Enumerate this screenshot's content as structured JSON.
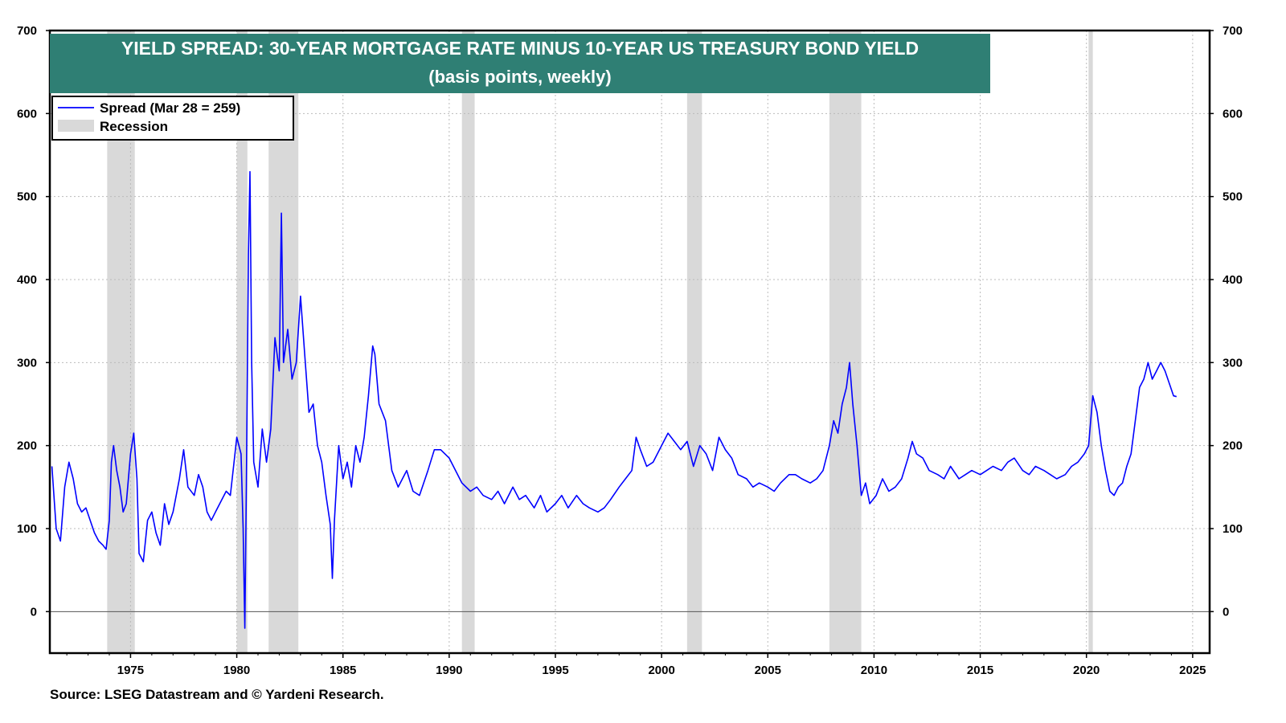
{
  "chart_data": {
    "type": "line",
    "title": "YIELD SPREAD: 30-YEAR MORTGAGE RATE MINUS 10-YEAR US TREASURY BOND YIELD",
    "subtitle": "(basis points, weekly)",
    "source": "Source: LSEG Datastream and © Yardeni Research.",
    "xlim": [
      1971.2,
      2025.8
    ],
    "ylim": [
      -50,
      700
    ],
    "x_ticks": [
      1975,
      1980,
      1985,
      1990,
      1995,
      2000,
      2005,
      2010,
      2015,
      2020,
      2025
    ],
    "y_ticks": [
      0,
      100,
      200,
      300,
      400,
      500,
      600,
      700
    ],
    "grid": true,
    "legend_position": "top-left",
    "recession_label": "Recession",
    "recessions": [
      [
        1973.9,
        1975.2
      ],
      [
        1980.0,
        1980.5
      ],
      [
        1981.5,
        1982.9
      ],
      [
        1990.6,
        1991.2
      ],
      [
        2001.2,
        2001.9
      ],
      [
        2007.9,
        2009.4
      ],
      [
        2020.1,
        2020.3
      ]
    ],
    "colors": {
      "line": "#0000ff",
      "recession": "#d9d9d9",
      "title_bg": "#2f7f74",
      "grid": "#bbbbbb"
    },
    "series": [
      {
        "name": "Spread (Mar 28 = 259)",
        "points": [
          [
            1971.3,
            175
          ],
          [
            1971.5,
            100
          ],
          [
            1971.7,
            85
          ],
          [
            1971.9,
            150
          ],
          [
            1972.1,
            180
          ],
          [
            1972.3,
            160
          ],
          [
            1972.5,
            130
          ],
          [
            1972.7,
            120
          ],
          [
            1972.9,
            125
          ],
          [
            1973.1,
            110
          ],
          [
            1973.3,
            95
          ],
          [
            1973.5,
            85
          ],
          [
            1973.7,
            80
          ],
          [
            1973.85,
            75
          ],
          [
            1974.0,
            110
          ],
          [
            1974.1,
            180
          ],
          [
            1974.2,
            200
          ],
          [
            1974.35,
            170
          ],
          [
            1974.5,
            150
          ],
          [
            1974.65,
            120
          ],
          [
            1974.8,
            130
          ],
          [
            1975.0,
            190
          ],
          [
            1975.15,
            215
          ],
          [
            1975.3,
            160
          ],
          [
            1975.4,
            70
          ],
          [
            1975.6,
            60
          ],
          [
            1975.8,
            110
          ],
          [
            1976.0,
            120
          ],
          [
            1976.2,
            95
          ],
          [
            1976.4,
            80
          ],
          [
            1976.6,
            130
          ],
          [
            1976.8,
            105
          ],
          [
            1977.0,
            120
          ],
          [
            1977.3,
            160
          ],
          [
            1977.5,
            195
          ],
          [
            1977.7,
            150
          ],
          [
            1978.0,
            140
          ],
          [
            1978.2,
            165
          ],
          [
            1978.4,
            150
          ],
          [
            1978.6,
            120
          ],
          [
            1978.8,
            110
          ],
          [
            1979.0,
            120
          ],
          [
            1979.3,
            135
          ],
          [
            1979.5,
            145
          ],
          [
            1979.7,
            140
          ],
          [
            1980.0,
            210
          ],
          [
            1980.2,
            190
          ],
          [
            1980.3,
            100
          ],
          [
            1980.38,
            -20
          ],
          [
            1980.45,
            150
          ],
          [
            1980.55,
            430
          ],
          [
            1980.62,
            530
          ],
          [
            1980.7,
            300
          ],
          [
            1980.8,
            180
          ],
          [
            1981.0,
            150
          ],
          [
            1981.2,
            220
          ],
          [
            1981.4,
            180
          ],
          [
            1981.6,
            220
          ],
          [
            1981.8,
            330
          ],
          [
            1982.0,
            290
          ],
          [
            1982.1,
            480
          ],
          [
            1982.2,
            300
          ],
          [
            1982.4,
            340
          ],
          [
            1982.6,
            280
          ],
          [
            1982.8,
            300
          ],
          [
            1983.0,
            380
          ],
          [
            1983.2,
            310
          ],
          [
            1983.4,
            240
          ],
          [
            1983.6,
            250
          ],
          [
            1983.8,
            200
          ],
          [
            1984.0,
            180
          ],
          [
            1984.2,
            140
          ],
          [
            1984.4,
            105
          ],
          [
            1984.5,
            40
          ],
          [
            1984.6,
            110
          ],
          [
            1984.8,
            200
          ],
          [
            1985.0,
            160
          ],
          [
            1985.2,
            180
          ],
          [
            1985.4,
            150
          ],
          [
            1985.6,
            200
          ],
          [
            1985.8,
            180
          ],
          [
            1986.0,
            210
          ],
          [
            1986.2,
            260
          ],
          [
            1986.4,
            320
          ],
          [
            1986.5,
            310
          ],
          [
            1986.7,
            250
          ],
          [
            1987.0,
            230
          ],
          [
            1987.3,
            170
          ],
          [
            1987.6,
            150
          ],
          [
            1988.0,
            170
          ],
          [
            1988.3,
            145
          ],
          [
            1988.6,
            140
          ],
          [
            1989.0,
            170
          ],
          [
            1989.3,
            195
          ],
          [
            1989.6,
            195
          ],
          [
            1990.0,
            185
          ],
          [
            1990.3,
            170
          ],
          [
            1990.6,
            155
          ],
          [
            1991.0,
            145
          ],
          [
            1991.3,
            150
          ],
          [
            1991.6,
            140
          ],
          [
            1992.0,
            135
          ],
          [
            1992.3,
            145
          ],
          [
            1992.6,
            130
          ],
          [
            1993.0,
            150
          ],
          [
            1993.3,
            135
          ],
          [
            1993.6,
            140
          ],
          [
            1994.0,
            125
          ],
          [
            1994.3,
            140
          ],
          [
            1994.6,
            120
          ],
          [
            1995.0,
            130
          ],
          [
            1995.3,
            140
          ],
          [
            1995.6,
            125
          ],
          [
            1996.0,
            140
          ],
          [
            1996.3,
            130
          ],
          [
            1996.6,
            125
          ],
          [
            1997.0,
            120
          ],
          [
            1997.3,
            125
          ],
          [
            1997.6,
            135
          ],
          [
            1998.0,
            150
          ],
          [
            1998.3,
            160
          ],
          [
            1998.6,
            170
          ],
          [
            1998.8,
            210
          ],
          [
            1999.0,
            195
          ],
          [
            1999.3,
            175
          ],
          [
            1999.6,
            180
          ],
          [
            2000.0,
            200
          ],
          [
            2000.3,
            215
          ],
          [
            2000.6,
            205
          ],
          [
            2000.9,
            195
          ],
          [
            2001.2,
            205
          ],
          [
            2001.5,
            175
          ],
          [
            2001.8,
            200
          ],
          [
            2002.1,
            190
          ],
          [
            2002.4,
            170
          ],
          [
            2002.7,
            210
          ],
          [
            2003.0,
            195
          ],
          [
            2003.3,
            185
          ],
          [
            2003.6,
            165
          ],
          [
            2004.0,
            160
          ],
          [
            2004.3,
            150
          ],
          [
            2004.6,
            155
          ],
          [
            2005.0,
            150
          ],
          [
            2005.3,
            145
          ],
          [
            2005.6,
            155
          ],
          [
            2006.0,
            165
          ],
          [
            2006.3,
            165
          ],
          [
            2006.6,
            160
          ],
          [
            2007.0,
            155
          ],
          [
            2007.3,
            160
          ],
          [
            2007.6,
            170
          ],
          [
            2007.9,
            200
          ],
          [
            2008.1,
            230
          ],
          [
            2008.3,
            215
          ],
          [
            2008.5,
            250
          ],
          [
            2008.7,
            270
          ],
          [
            2008.85,
            300
          ],
          [
            2009.0,
            250
          ],
          [
            2009.2,
            200
          ],
          [
            2009.4,
            140
          ],
          [
            2009.6,
            155
          ],
          [
            2009.8,
            130
          ],
          [
            2010.1,
            140
          ],
          [
            2010.4,
            160
          ],
          [
            2010.7,
            145
          ],
          [
            2011.0,
            150
          ],
          [
            2011.3,
            160
          ],
          [
            2011.6,
            185
          ],
          [
            2011.8,
            205
          ],
          [
            2012.0,
            190
          ],
          [
            2012.3,
            185
          ],
          [
            2012.6,
            170
          ],
          [
            2013.0,
            165
          ],
          [
            2013.3,
            160
          ],
          [
            2013.6,
            175
          ],
          [
            2014.0,
            160
          ],
          [
            2014.3,
            165
          ],
          [
            2014.6,
            170
          ],
          [
            2015.0,
            165
          ],
          [
            2015.3,
            170
          ],
          [
            2015.6,
            175
          ],
          [
            2016.0,
            170
          ],
          [
            2016.3,
            180
          ],
          [
            2016.6,
            185
          ],
          [
            2017.0,
            170
          ],
          [
            2017.3,
            165
          ],
          [
            2017.6,
            175
          ],
          [
            2018.0,
            170
          ],
          [
            2018.3,
            165
          ],
          [
            2018.6,
            160
          ],
          [
            2019.0,
            165
          ],
          [
            2019.3,
            175
          ],
          [
            2019.6,
            180
          ],
          [
            2019.9,
            190
          ],
          [
            2020.1,
            200
          ],
          [
            2020.3,
            260
          ],
          [
            2020.5,
            240
          ],
          [
            2020.7,
            200
          ],
          [
            2020.9,
            170
          ],
          [
            2021.1,
            145
          ],
          [
            2021.3,
            140
          ],
          [
            2021.5,
            150
          ],
          [
            2021.7,
            155
          ],
          [
            2021.9,
            175
          ],
          [
            2022.1,
            190
          ],
          [
            2022.3,
            230
          ],
          [
            2022.5,
            270
          ],
          [
            2022.7,
            280
          ],
          [
            2022.9,
            300
          ],
          [
            2023.1,
            280
          ],
          [
            2023.3,
            290
          ],
          [
            2023.5,
            300
          ],
          [
            2023.7,
            290
          ],
          [
            2023.9,
            275
          ],
          [
            2024.1,
            260
          ],
          [
            2024.24,
            259
          ]
        ]
      }
    ]
  }
}
